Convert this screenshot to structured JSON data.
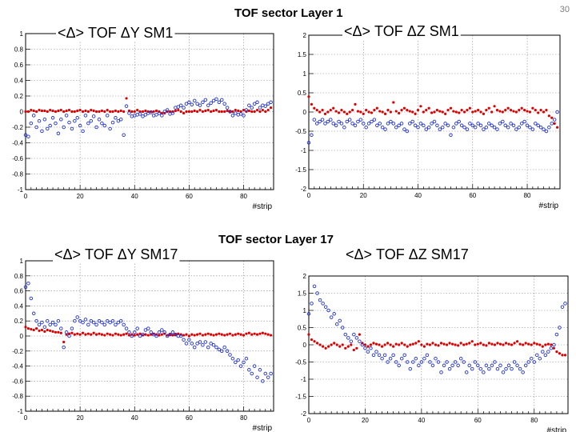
{
  "page": {
    "number": "30"
  },
  "sections": [
    {
      "title": "TOF sector Layer 1"
    },
    {
      "title": "TOF sector Layer 17"
    }
  ],
  "chart_data": [
    {
      "type": "scatter",
      "title": "<Δ> TOF ΔY SM1",
      "xlabel": "#strip",
      "ylabel": "",
      "xlim": [
        0,
        91
      ],
      "ylim": [
        -1,
        1
      ],
      "xticks": [
        0,
        20,
        40,
        60,
        80
      ],
      "yticks": [
        -1,
        -0.8,
        -0.6,
        -0.4,
        -0.2,
        0,
        0.2,
        0.4,
        0.6,
        0.8,
        1
      ],
      "grid": true,
      "series": [
        {
          "marker": "filled-dot",
          "color": "#dd0000",
          "values": [
            0.0,
            0.0,
            0.02,
            0.01,
            0.0,
            0.02,
            0.01,
            0.01,
            0.0,
            0.02,
            0.01,
            0.0,
            0.01,
            0.02,
            0.0,
            0.01,
            0.02,
            0.0,
            0.0,
            0.01,
            0.02,
            0.0,
            0.01,
            0.0,
            0.02,
            0.01,
            0.0,
            0.0,
            0.01,
            0.0,
            0.02,
            0.0,
            0.0,
            0.01,
            0.0,
            0.01,
            0.0,
            0.17,
            0.01,
            0.0,
            0.0,
            0.02,
            0.0,
            0.0,
            0.01,
            0.0,
            0.0,
            0.0,
            0.01,
            0.0,
            -0.02,
            -0.02,
            0.0,
            0.0,
            0.0,
            0.01,
            0.02,
            0.0,
            -0.02,
            0.0,
            0.0,
            0.0,
            0.01,
            0.0,
            0.02,
            0.0,
            0.01,
            0.02,
            0.0,
            0.01,
            0.02,
            0.0,
            0.0,
            0.0,
            0.01,
            0.0,
            0.0,
            0.02,
            0.01,
            0.0,
            0.02,
            0.0,
            0.01,
            0.0,
            0.0,
            0.02,
            0.0,
            0.02,
            0.0,
            0.02,
            0.05
          ]
        },
        {
          "marker": "open-circle",
          "color": "#2233cc",
          "values": [
            -0.3,
            -0.32,
            -0.15,
            -0.05,
            -0.2,
            -0.12,
            -0.25,
            -0.1,
            -0.22,
            -0.18,
            -0.08,
            -0.15,
            -0.28,
            -0.1,
            -0.2,
            -0.05,
            -0.14,
            -0.22,
            -0.12,
            -0.08,
            -0.18,
            -0.25,
            -0.05,
            -0.15,
            -0.12,
            -0.06,
            -0.2,
            -0.1,
            -0.15,
            -0.18,
            -0.05,
            -0.22,
            -0.14,
            -0.08,
            -0.12,
            -0.1,
            -0.3,
            0.07,
            -0.02,
            -0.06,
            -0.05,
            -0.04,
            -0.03,
            -0.06,
            -0.04,
            -0.02,
            -0.01,
            -0.05,
            -0.04,
            -0.02,
            -0.05,
            0.0,
            0.02,
            -0.03,
            -0.02,
            0.05,
            0.06,
            0.08,
            0.05,
            0.1,
            0.12,
            0.09,
            0.14,
            0.1,
            0.08,
            0.12,
            0.15,
            0.08,
            0.11,
            0.14,
            0.16,
            0.12,
            0.15,
            0.1,
            0.05,
            0.0,
            -0.05,
            -0.02,
            -0.04,
            -0.03,
            -0.05,
            0.02,
            0.08,
            0.05,
            0.1,
            0.12,
            0.05,
            0.08,
            0.07,
            0.1,
            0.12
          ]
        }
      ]
    },
    {
      "type": "scatter",
      "title": "<Δ> TOF ΔZ SM1",
      "xlabel": "#strip",
      "ylabel": "",
      "xlim": [
        0,
        92
      ],
      "ylim": [
        -2,
        2
      ],
      "xticks": [
        0,
        20,
        40,
        60,
        80
      ],
      "yticks": [
        -2,
        -1.5,
        -1,
        -0.5,
        0,
        0.5,
        1,
        1.5,
        2
      ],
      "grid": true,
      "series": [
        {
          "marker": "filled-dot",
          "color": "#dd0000",
          "values": [
            0.4,
            0.2,
            0.1,
            0.05,
            0.0,
            0.05,
            -0.05,
            0.0,
            0.05,
            0.1,
            0.02,
            -0.02,
            0.05,
            0.0,
            -0.05,
            0.0,
            0.05,
            0.2,
            0.02,
            0.0,
            -0.05,
            0.05,
            0.0,
            -0.02,
            0.05,
            0.1,
            0.02,
            0.0,
            -0.05,
            0.05,
            0.0,
            0.25,
            0.02,
            -0.03,
            0.05,
            0.1,
            0.05,
            0.02,
            0.0,
            -0.05,
            0.05,
            0.15,
            0.0,
            0.05,
            0.1,
            -0.02,
            0.0,
            0.05,
            0.02,
            0.0,
            -0.05,
            0.05,
            0.1,
            0.02,
            0.0,
            -0.02,
            0.05,
            0.0,
            0.05,
            0.1,
            0.0,
            0.02,
            0.05,
            0.0,
            -0.05,
            0.05,
            0.1,
            0.0,
            0.15,
            0.05,
            0.02,
            0.0,
            0.05,
            0.1,
            0.05,
            0.02,
            0.0,
            0.05,
            0.1,
            0.05,
            0.02,
            0.0,
            0.1,
            0.05,
            -0.02,
            0.05,
            0.0,
            0.05,
            -0.1,
            -0.15,
            -0.3,
            -0.4
          ]
        },
        {
          "marker": "open-circle",
          "color": "#2233cc",
          "values": [
            -0.8,
            -0.6,
            -0.2,
            -0.3,
            -0.25,
            -0.2,
            -0.3,
            -0.25,
            -0.2,
            -0.3,
            -0.35,
            -0.25,
            -0.3,
            -0.4,
            -0.25,
            -0.2,
            -0.3,
            -0.35,
            -0.25,
            -0.2,
            -0.3,
            -0.4,
            -0.3,
            -0.25,
            -0.2,
            -0.35,
            -0.3,
            -0.4,
            -0.45,
            -0.3,
            -0.25,
            -0.3,
            -0.4,
            -0.35,
            -0.3,
            -0.45,
            -0.5,
            -0.3,
            -0.25,
            -0.35,
            -0.4,
            -0.3,
            -0.35,
            -0.45,
            -0.4,
            -0.3,
            -0.25,
            -0.35,
            -0.45,
            -0.4,
            -0.3,
            -0.35,
            -0.6,
            -0.4,
            -0.3,
            -0.25,
            -0.35,
            -0.4,
            -0.45,
            -0.3,
            -0.35,
            -0.4,
            -0.3,
            -0.35,
            -0.45,
            -0.4,
            -0.3,
            -0.35,
            -0.4,
            -0.45,
            -0.3,
            -0.25,
            -0.35,
            -0.4,
            -0.3,
            -0.35,
            -0.45,
            -0.4,
            -0.3,
            -0.25,
            -0.35,
            -0.4,
            -0.45,
            -0.3,
            -0.35,
            -0.4,
            -0.45,
            -0.5,
            -0.4,
            -0.3,
            -0.2,
            0.0
          ]
        }
      ]
    },
    {
      "type": "scatter",
      "title": "<Δ> TOF ΔY SM17",
      "xlabel": "#strip",
      "ylabel": "",
      "xlim": [
        0,
        91
      ],
      "ylim": [
        -1,
        1
      ],
      "xticks": [
        0,
        20,
        40,
        60,
        80
      ],
      "yticks": [
        -1,
        -0.8,
        -0.6,
        -0.4,
        -0.2,
        0,
        0.2,
        0.4,
        0.6,
        0.8,
        1
      ],
      "grid": true,
      "series": [
        {
          "marker": "filled-dot",
          "color": "#dd0000",
          "values": [
            0.12,
            0.1,
            0.09,
            0.08,
            0.1,
            0.07,
            0.08,
            0.06,
            0.08,
            0.07,
            0.06,
            0.05,
            0.05,
            0.04,
            -0.08,
            0.02,
            0.03,
            0.04,
            0.02,
            0.03,
            0.02,
            0.04,
            0.02,
            0.03,
            0.02,
            0.04,
            0.02,
            0.03,
            0.02,
            0.01,
            0.03,
            0.02,
            0.01,
            0.03,
            0.02,
            0.01,
            0.02,
            0.03,
            0.01,
            0.02,
            0.01,
            0.02,
            0.03,
            0.01,
            0.02,
            0.01,
            0.02,
            0.03,
            0.02,
            0.01,
            0.02,
            0.03,
            0.01,
            0.02,
            0.01,
            0.02,
            0.03,
            0.02,
            0.01,
            0.02,
            0.0,
            0.02,
            0.01,
            0.02,
            0.03,
            0.01,
            0.02,
            0.03,
            0.02,
            0.01,
            0.02,
            0.03,
            0.02,
            0.01,
            0.02,
            0.03,
            0.01,
            0.02,
            0.03,
            0.02,
            0.01,
            0.03,
            0.04,
            0.02,
            0.03,
            0.02,
            0.03,
            0.04,
            0.03,
            0.02,
            0.01
          ]
        },
        {
          "marker": "open-circle",
          "color": "#2233cc",
          "values": [
            0.65,
            0.7,
            0.5,
            0.3,
            0.2,
            0.15,
            0.18,
            0.12,
            0.2,
            0.15,
            0.18,
            0.15,
            0.2,
            0.1,
            -0.15,
            0.05,
            0.0,
            0.1,
            0.2,
            0.25,
            0.2,
            0.18,
            0.22,
            0.15,
            0.2,
            0.18,
            0.15,
            0.2,
            0.18,
            0.15,
            0.2,
            0.18,
            0.2,
            0.15,
            0.18,
            0.2,
            0.15,
            0.1,
            0.05,
            0.0,
            0.05,
            0.1,
            0.0,
            0.02,
            0.08,
            0.1,
            0.05,
            0.02,
            0.0,
            0.05,
            0.08,
            0.05,
            0.0,
            0.02,
            0.05,
            0.02,
            0.0,
            0.0,
            -0.05,
            -0.1,
            -0.05,
            -0.1,
            -0.15,
            -0.1,
            -0.08,
            -0.12,
            -0.08,
            -0.15,
            -0.1,
            -0.12,
            -0.15,
            -0.18,
            -0.2,
            -0.15,
            -0.2,
            -0.25,
            -0.3,
            -0.35,
            -0.32,
            -0.4,
            -0.35,
            -0.3,
            -0.45,
            -0.5,
            -0.4,
            -0.55,
            -0.45,
            -0.6,
            -0.5,
            -0.55,
            -0.5
          ]
        }
      ]
    },
    {
      "type": "scatter",
      "title": "<Δ> TOF ΔZ SM17",
      "xlabel": "#strip",
      "ylabel": "",
      "xlim": [
        0,
        92
      ],
      "ylim": [
        -2,
        2
      ],
      "xticks": [
        0,
        20,
        40,
        60,
        80
      ],
      "yticks": [
        -2,
        -1.5,
        -1,
        -0.5,
        0,
        0.5,
        1,
        1.5,
        2
      ],
      "grid": true,
      "series": [
        {
          "marker": "filled-dot",
          "color": "#dd0000",
          "values": [
            0.3,
            0.15,
            0.1,
            0.05,
            0.0,
            -0.05,
            -0.1,
            -0.05,
            0.0,
            0.05,
            0.0,
            -0.05,
            0.0,
            -0.1,
            -0.05,
            0.0,
            -0.15,
            -0.1,
            0.3,
            0.05,
            0.0,
            -0.05,
            0.0,
            0.05,
            0.02,
            0.0,
            -0.05,
            0.0,
            0.05,
            0.0,
            -0.05,
            0.02,
            0.0,
            0.05,
            0.0,
            -0.05,
            0.0,
            0.02,
            0.05,
            0.1,
            0.0,
            -0.05,
            0.02,
            0.0,
            0.05,
            0.0,
            -0.02,
            0.05,
            0.02,
            0.0,
            0.05,
            0.02,
            0.0,
            -0.02,
            0.05,
            0.0,
            0.02,
            0.05,
            0.1,
            0.0,
            0.02,
            0.05,
            0.0,
            -0.02,
            0.05,
            0.02,
            0.0,
            0.05,
            0.02,
            0.0,
            0.05,
            0.02,
            0.0,
            0.05,
            0.1,
            0.02,
            0.0,
            0.05,
            0.02,
            0.0,
            0.05,
            0.02,
            0.0,
            -0.05,
            0.0,
            0.02,
            0.0,
            -0.1,
            -0.2,
            -0.25,
            -0.3,
            -0.3
          ]
        },
        {
          "marker": "open-circle",
          "color": "#2233cc",
          "values": [
            0.9,
            1.2,
            1.7,
            1.5,
            1.3,
            1.2,
            1.1,
            1.0,
            0.8,
            0.9,
            0.6,
            0.7,
            0.5,
            0.3,
            0.2,
            0.1,
            0.3,
            0.2,
            0.1,
            0.0,
            -0.1,
            -0.2,
            -0.1,
            -0.3,
            -0.2,
            -0.3,
            -0.4,
            -0.3,
            -0.5,
            -0.4,
            -0.3,
            -0.5,
            -0.6,
            -0.4,
            -0.3,
            -0.5,
            -0.7,
            -0.5,
            -0.4,
            -0.6,
            -0.5,
            -0.4,
            -0.3,
            -0.5,
            -0.6,
            -0.4,
            -0.5,
            -0.8,
            -0.6,
            -0.5,
            -0.7,
            -0.6,
            -0.5,
            -0.6,
            -0.4,
            -0.5,
            -0.8,
            -0.6,
            -0.7,
            -0.5,
            -0.6,
            -0.7,
            -0.8,
            -0.6,
            -0.7,
            -0.6,
            -0.5,
            -0.7,
            -0.6,
            -0.8,
            -0.7,
            -0.6,
            -0.7,
            -0.5,
            -0.6,
            -0.7,
            -0.8,
            -0.6,
            -0.5,
            -0.4,
            -0.5,
            -0.3,
            -0.4,
            -0.2,
            -0.3,
            -0.2,
            -0.1,
            0.0,
            0.3,
            0.5,
            1.1,
            1.2
          ]
        }
      ]
    }
  ]
}
